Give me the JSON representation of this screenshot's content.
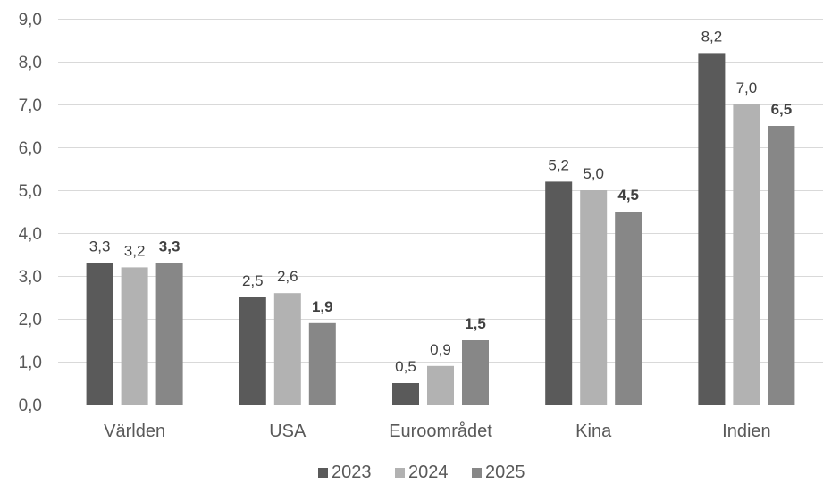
{
  "chart_data": {
    "type": "bar",
    "categories": [
      "Världen",
      "USA",
      "Euroområdet",
      "Kina",
      "Indien"
    ],
    "series": [
      {
        "name": "2023",
        "values": [
          3.3,
          2.5,
          0.5,
          5.2,
          8.2
        ],
        "labels": [
          "3,3",
          "2,5",
          "0,5",
          "5,2",
          "8,2"
        ],
        "color": "#5a5a5a",
        "bold_labels": false
      },
      {
        "name": "2024",
        "values": [
          3.2,
          2.6,
          0.9,
          5.0,
          7.0
        ],
        "labels": [
          "3,2",
          "2,6",
          "0,9",
          "5,0",
          "7,0"
        ],
        "color": "#b2b2b2",
        "bold_labels": false
      },
      {
        "name": "2025",
        "values": [
          3.3,
          1.9,
          1.5,
          4.5,
          6.5
        ],
        "labels": [
          "3,3",
          "1,9",
          "1,5",
          "4,5",
          "6,5"
        ],
        "color": "#878787",
        "bold_labels": true
      }
    ],
    "y_ticks": [
      0,
      1,
      2,
      3,
      4,
      5,
      6,
      7,
      8,
      9
    ],
    "y_tick_labels": [
      "0,0",
      "1,0",
      "2,0",
      "3,0",
      "4,0",
      "5,0",
      "6,0",
      "7,0",
      "8,0",
      "9,0"
    ],
    "ylim": [
      0,
      9
    ],
    "title": "",
    "xlabel": "",
    "ylabel": "",
    "grid": true,
    "legend_position": "bottom",
    "gridline_color": "#d9d9d9"
  }
}
